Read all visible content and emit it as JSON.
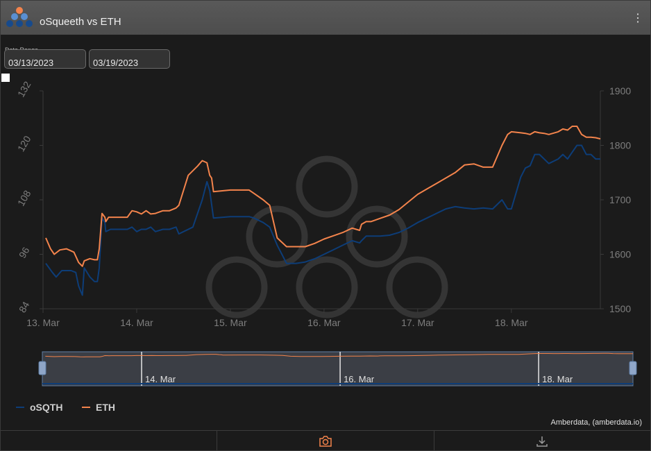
{
  "widget": {
    "title": "oSqueeth vs ETH"
  },
  "date_range": {
    "label": "Date Range",
    "start": "03/13/2023",
    "end": "03/19/2023"
  },
  "credit": "Amberdata, (amberdata.io)",
  "colors": {
    "osqth": "#0d3d78",
    "eth": "#f4844c",
    "background": "#1b1b1b",
    "grid": "#3a3a3a",
    "axis_text": "#7e7e7e"
  },
  "chart_data": {
    "type": "line",
    "x_ticks": [
      "13. Mar",
      "14. Mar",
      "15. Mar",
      "16. Mar",
      "17. Mar",
      "18. Mar"
    ],
    "navigator_ticks": [
      "14. Mar",
      "16. Mar",
      "18. Mar"
    ],
    "y_left": {
      "ticks": [
        84,
        96,
        108,
        120,
        132
      ],
      "range": [
        84,
        132
      ]
    },
    "y_right": {
      "ticks": [
        1500,
        1600,
        1700,
        1800,
        1900
      ],
      "range": [
        1500,
        1900
      ]
    },
    "series": [
      {
        "name": "oSQTH",
        "axis": "left",
        "x": [
          13.03,
          13.1,
          13.14,
          13.2,
          13.3,
          13.35,
          13.38,
          13.42,
          13.44,
          13.5,
          13.55,
          13.58,
          13.6,
          13.63,
          13.66,
          13.67,
          13.72,
          13.8,
          13.9,
          13.95,
          14.0,
          14.05,
          14.1,
          14.15,
          14.2,
          14.28,
          14.3,
          14.35,
          14.42,
          14.45,
          14.6,
          14.7,
          14.75,
          14.78,
          14.8,
          14.82,
          15.0,
          15.2,
          15.25,
          15.35,
          15.42,
          15.5,
          15.6,
          15.7,
          15.8,
          15.9,
          16.0,
          16.1,
          16.2,
          16.3,
          16.38,
          16.4,
          16.45,
          16.5,
          16.6,
          16.7,
          16.8,
          16.9,
          17.0,
          17.1,
          17.2,
          17.3,
          17.4,
          17.5,
          17.6,
          17.7,
          17.8,
          17.9,
          17.96,
          18.0,
          18.1,
          18.15,
          18.2,
          18.25,
          18.3,
          18.35,
          18.4,
          18.5,
          18.55,
          18.6,
          18.65,
          18.7,
          18.75,
          18.8,
          18.85,
          18.9,
          18.95
        ],
        "values": [
          94.0,
          92.0,
          91.0,
          92.4,
          92.4,
          92.0,
          89.0,
          87.0,
          93.0,
          91.0,
          90.0,
          90.0,
          93.0,
          104.0,
          103.0,
          101.0,
          101.5,
          101.5,
          101.5,
          102.0,
          101.0,
          101.5,
          101.5,
          102.0,
          101.0,
          101.5,
          101.5,
          101.5,
          102.0,
          100.5,
          102.0,
          108.0,
          112.0,
          110.0,
          107.0,
          104.0,
          104.3,
          104.3,
          104.0,
          103.0,
          102.0,
          98.0,
          94.0,
          94.0,
          94.3,
          95.0,
          96.0,
          97.0,
          98.0,
          99.0,
          98.5,
          99.0,
          100.0,
          100.0,
          100.0,
          100.2,
          100.8,
          101.8,
          103.0,
          104.0,
          105.0,
          106.0,
          106.5,
          106.2,
          106.0,
          106.2,
          106.0,
          108.0,
          106.0,
          106.0,
          113.0,
          115.0,
          115.5,
          118.0,
          118.0,
          117.0,
          116.0,
          117.0,
          118.0,
          117.0,
          118.5,
          120.0,
          120.0,
          118.0,
          118.0,
          117.0,
          117.0
        ]
      },
      {
        "name": "ETH",
        "axis": "right",
        "x": [
          13.03,
          13.08,
          13.12,
          13.18,
          13.25,
          13.33,
          13.38,
          13.42,
          13.44,
          13.5,
          13.55,
          13.58,
          13.6,
          13.63,
          13.66,
          13.67,
          13.7,
          13.78,
          13.9,
          13.95,
          14.0,
          14.05,
          14.1,
          14.15,
          14.2,
          14.28,
          14.3,
          14.35,
          14.42,
          14.45,
          14.55,
          14.65,
          14.7,
          14.75,
          14.78,
          14.8,
          14.82,
          15.0,
          15.2,
          15.25,
          15.35,
          15.42,
          15.5,
          15.6,
          15.7,
          15.8,
          15.9,
          16.0,
          16.1,
          16.2,
          16.3,
          16.38,
          16.4,
          16.45,
          16.5,
          16.6,
          16.7,
          16.8,
          16.9,
          17.0,
          17.1,
          17.2,
          17.3,
          17.4,
          17.5,
          17.6,
          17.7,
          17.8,
          17.9,
          17.96,
          18.0,
          18.1,
          18.15,
          18.2,
          18.25,
          18.3,
          18.35,
          18.4,
          18.5,
          18.55,
          18.6,
          18.65,
          18.7,
          18.75,
          18.8,
          18.85,
          18.9,
          18.95
        ],
        "values": [
          1630,
          1610,
          1600,
          1608,
          1610,
          1604,
          1585,
          1578,
          1588,
          1592,
          1590,
          1590,
          1610,
          1675,
          1668,
          1660,
          1668,
          1668,
          1668,
          1680,
          1678,
          1674,
          1680,
          1674,
          1675,
          1680,
          1680,
          1680,
          1685,
          1690,
          1745,
          1762,
          1772,
          1768,
          1745,
          1740,
          1715,
          1718,
          1718,
          1712,
          1700,
          1690,
          1630,
          1614,
          1614,
          1614,
          1620,
          1628,
          1634,
          1640,
          1648,
          1644,
          1655,
          1660,
          1660,
          1666,
          1672,
          1682,
          1696,
          1710,
          1720,
          1730,
          1740,
          1750,
          1764,
          1766,
          1760,
          1760,
          1800,
          1820,
          1825,
          1823,
          1822,
          1820,
          1825,
          1823,
          1822,
          1820,
          1825,
          1830,
          1828,
          1835,
          1835,
          1820,
          1815,
          1815,
          1814,
          1812
        ]
      }
    ]
  }
}
